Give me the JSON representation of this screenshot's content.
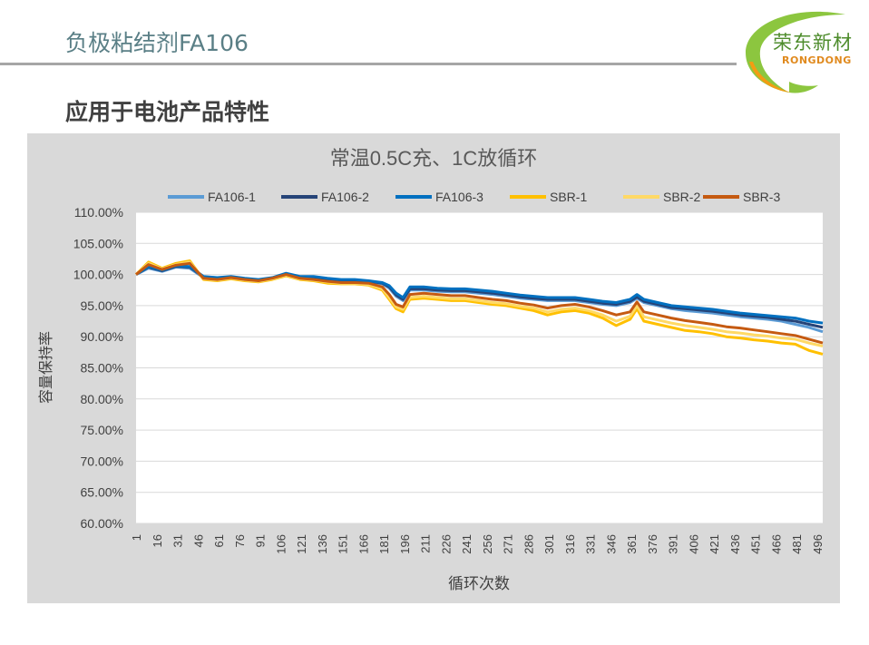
{
  "slide": {
    "title": "负极粘结剂FA106",
    "section_heading": "应用于电池产品特性"
  },
  "logo": {
    "name": "荣东新材",
    "sub": "RONGDONG",
    "colors": {
      "green": "#8cc63f",
      "orange": "#f39c12",
      "text_green": "#4e8c2c",
      "text_orange": "#e08a1e"
    }
  },
  "chart_data": {
    "type": "line",
    "title": "常温0.5C充、1C放循环",
    "xlabel": "循环次数",
    "ylabel": "容量保持率",
    "ylim": [
      0.6,
      1.1
    ],
    "y_ticks": [
      "110.00%",
      "105.00%",
      "100.00%",
      "95.00%",
      "90.00%",
      "85.00%",
      "80.00%",
      "75.00%",
      "70.00%",
      "65.00%",
      "60.00%"
    ],
    "x_ticks": [
      1,
      16,
      31,
      46,
      61,
      76,
      91,
      106,
      121,
      136,
      151,
      166,
      181,
      196,
      211,
      226,
      241,
      256,
      271,
      286,
      301,
      316,
      331,
      346,
      361,
      376,
      391,
      406,
      421,
      436,
      451,
      466,
      481,
      496
    ],
    "x": [
      1,
      10,
      20,
      30,
      40,
      50,
      60,
      70,
      80,
      90,
      100,
      110,
      120,
      130,
      140,
      150,
      160,
      170,
      180,
      185,
      190,
      195,
      200,
      210,
      220,
      230,
      240,
      250,
      260,
      270,
      280,
      290,
      300,
      310,
      320,
      330,
      340,
      350,
      360,
      365,
      370,
      380,
      390,
      400,
      410,
      420,
      430,
      440,
      450,
      460,
      470,
      480,
      490,
      500
    ],
    "grid": true,
    "legend": "top",
    "series": [
      {
        "name": "FA106-1",
        "color": "#5b9bd5",
        "values": [
          1.0,
          1.01,
          1.005,
          1.012,
          1.01,
          0.995,
          0.993,
          0.995,
          0.992,
          0.99,
          0.993,
          1.0,
          0.995,
          0.995,
          0.992,
          0.99,
          0.99,
          0.988,
          0.985,
          0.978,
          0.965,
          0.958,
          0.975,
          0.975,
          0.973,
          0.972,
          0.972,
          0.97,
          0.968,
          0.965,
          0.962,
          0.96,
          0.958,
          0.958,
          0.958,
          0.955,
          0.952,
          0.95,
          0.955,
          0.962,
          0.955,
          0.95,
          0.945,
          0.942,
          0.94,
          0.938,
          0.935,
          0.932,
          0.93,
          0.928,
          0.925,
          0.92,
          0.915,
          0.908
        ]
      },
      {
        "name": "FA106-2",
        "color": "#264478",
        "values": [
          1.0,
          1.012,
          1.006,
          1.013,
          1.012,
          0.996,
          0.994,
          0.996,
          0.993,
          0.991,
          0.994,
          1.001,
          0.996,
          0.996,
          0.993,
          0.991,
          0.991,
          0.989,
          0.986,
          0.98,
          0.967,
          0.96,
          0.977,
          0.977,
          0.975,
          0.974,
          0.974,
          0.972,
          0.97,
          0.967,
          0.964,
          0.962,
          0.96,
          0.96,
          0.96,
          0.957,
          0.954,
          0.952,
          0.957,
          0.964,
          0.957,
          0.952,
          0.947,
          0.945,
          0.943,
          0.941,
          0.938,
          0.935,
          0.933,
          0.931,
          0.928,
          0.925,
          0.92,
          0.915
        ]
      },
      {
        "name": "FA106-3",
        "color": "#0070c0",
        "values": [
          1.0,
          1.013,
          1.007,
          1.014,
          1.013,
          0.997,
          0.995,
          0.997,
          0.994,
          0.992,
          0.995,
          1.002,
          0.997,
          0.997,
          0.994,
          0.992,
          0.992,
          0.99,
          0.987,
          0.982,
          0.97,
          0.963,
          0.98,
          0.98,
          0.978,
          0.977,
          0.977,
          0.975,
          0.973,
          0.97,
          0.967,
          0.965,
          0.963,
          0.963,
          0.963,
          0.96,
          0.957,
          0.955,
          0.96,
          0.968,
          0.96,
          0.955,
          0.95,
          0.948,
          0.946,
          0.944,
          0.941,
          0.938,
          0.936,
          0.934,
          0.932,
          0.93,
          0.925,
          0.922
        ]
      },
      {
        "name": "SBR-1",
        "color": "#ffc000",
        "values": [
          1.0,
          1.02,
          1.01,
          1.018,
          1.022,
          0.992,
          0.99,
          0.993,
          0.99,
          0.988,
          0.992,
          0.998,
          0.992,
          0.99,
          0.986,
          0.985,
          0.985,
          0.983,
          0.975,
          0.96,
          0.945,
          0.94,
          0.96,
          0.962,
          0.96,
          0.958,
          0.958,
          0.955,
          0.952,
          0.95,
          0.946,
          0.942,
          0.935,
          0.94,
          0.942,
          0.938,
          0.93,
          0.918,
          0.928,
          0.945,
          0.925,
          0.92,
          0.915,
          0.91,
          0.908,
          0.905,
          0.9,
          0.898,
          0.895,
          0.893,
          0.89,
          0.888,
          0.878,
          0.872
        ]
      },
      {
        "name": "SBR-2",
        "color": "#ffd966",
        "values": [
          1.0,
          1.018,
          1.009,
          1.016,
          1.02,
          0.993,
          0.991,
          0.994,
          0.991,
          0.989,
          0.993,
          0.999,
          0.993,
          0.991,
          0.988,
          0.986,
          0.986,
          0.984,
          0.977,
          0.963,
          0.948,
          0.944,
          0.963,
          0.965,
          0.963,
          0.961,
          0.961,
          0.958,
          0.955,
          0.953,
          0.949,
          0.946,
          0.94,
          0.944,
          0.946,
          0.942,
          0.935,
          0.925,
          0.933,
          0.95,
          0.932,
          0.927,
          0.922,
          0.918,
          0.915,
          0.912,
          0.908,
          0.906,
          0.903,
          0.901,
          0.898,
          0.896,
          0.89,
          0.885
        ]
      },
      {
        "name": "SBR-3",
        "color": "#c55a11",
        "values": [
          1.0,
          1.016,
          1.008,
          1.015,
          1.018,
          0.994,
          0.992,
          0.995,
          0.992,
          0.99,
          0.994,
          1.0,
          0.994,
          0.992,
          0.989,
          0.987,
          0.987,
          0.986,
          0.98,
          0.968,
          0.952,
          0.948,
          0.968,
          0.97,
          0.968,
          0.966,
          0.966,
          0.963,
          0.96,
          0.958,
          0.954,
          0.951,
          0.946,
          0.95,
          0.952,
          0.948,
          0.942,
          0.935,
          0.94,
          0.956,
          0.94,
          0.935,
          0.93,
          0.926,
          0.923,
          0.92,
          0.916,
          0.914,
          0.911,
          0.908,
          0.905,
          0.902,
          0.896,
          0.89
        ]
      }
    ]
  }
}
